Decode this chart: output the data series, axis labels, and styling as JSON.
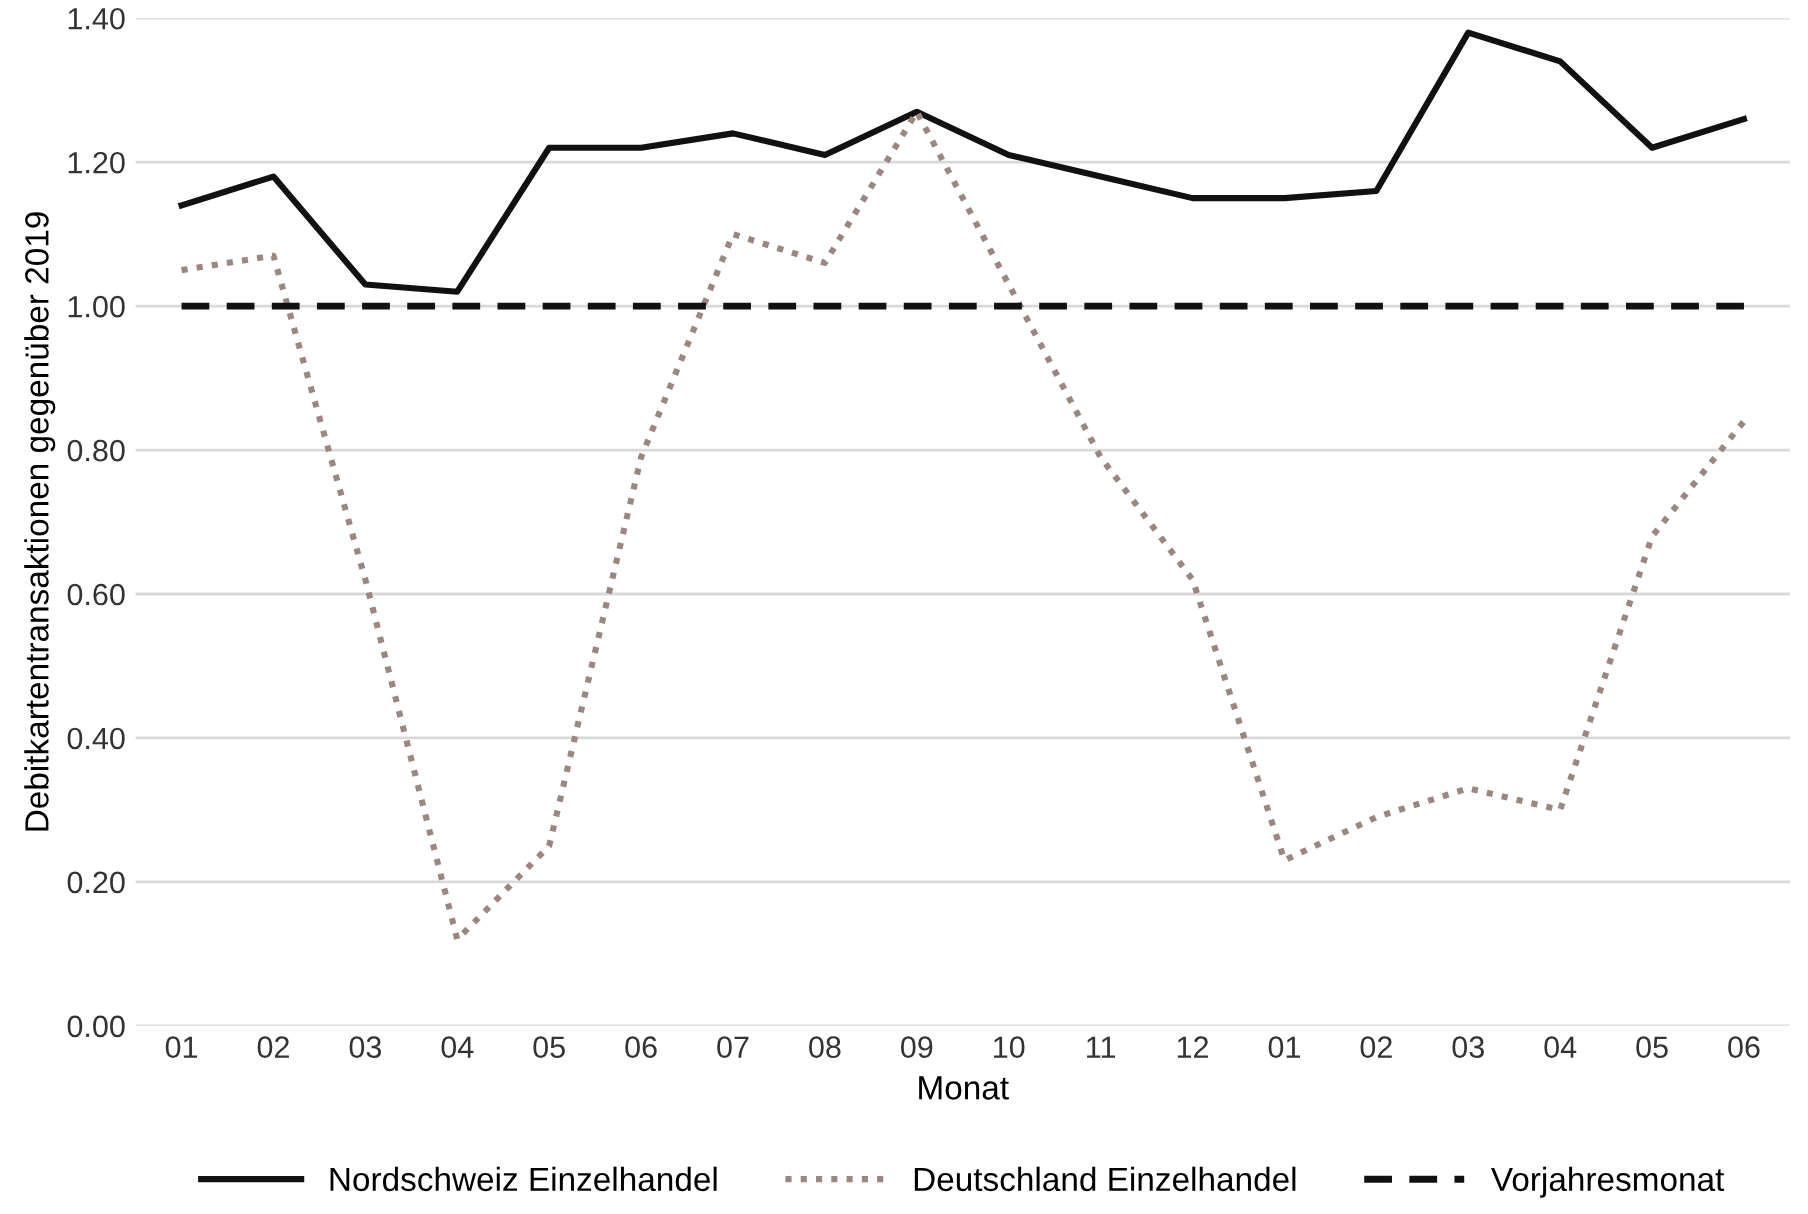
{
  "chart_data": {
    "type": "line",
    "xlabel": "Monat",
    "ylabel": "Debitkartentransaktionen gegenüber 2019",
    "categories": [
      "01",
      "02",
      "03",
      "04",
      "05",
      "06",
      "07",
      "08",
      "09",
      "10",
      "11",
      "12",
      "01",
      "02",
      "03",
      "04",
      "05",
      "06"
    ],
    "series": [
      {
        "name": "Nordschweiz Einzelhandel",
        "color": "#111111",
        "line_style": "solid",
        "values": [
          1.14,
          1.18,
          1.03,
          1.02,
          1.22,
          1.22,
          1.24,
          1.21,
          1.27,
          1.21,
          1.18,
          1.15,
          1.15,
          1.16,
          1.38,
          1.34,
          1.22,
          1.26
        ]
      },
      {
        "name": "Deutschland Einzelhandel",
        "color": "#9c8680",
        "line_style": "dotted",
        "values": [
          1.05,
          1.07,
          0.62,
          0.12,
          0.25,
          0.79,
          1.1,
          1.06,
          1.27,
          1.03,
          0.79,
          0.62,
          0.23,
          0.29,
          0.33,
          0.3,
          0.68,
          0.84
        ]
      },
      {
        "name": "Vorjahresmonat",
        "color": "#111111",
        "line_style": "dashed",
        "values": [
          1.0,
          1.0,
          1.0,
          1.0,
          1.0,
          1.0,
          1.0,
          1.0,
          1.0,
          1.0,
          1.0,
          1.0,
          1.0,
          1.0,
          1.0,
          1.0,
          1.0,
          1.0
        ]
      }
    ],
    "ylim": [
      0,
      1.4
    ],
    "yticks": [
      {
        "value": 0,
        "label": "0.00"
      },
      {
        "value": 0.2,
        "label": "0.20"
      },
      {
        "value": 0.4,
        "label": "0.40"
      },
      {
        "value": 0.6,
        "label": "0.60"
      },
      {
        "value": 0.8,
        "label": "0.80"
      },
      {
        "value": 1.0,
        "label": "1.00"
      },
      {
        "value": 1.2,
        "label": "1.20"
      },
      {
        "value": 1.4,
        "label": "1.40"
      }
    ],
    "grid": "y",
    "legend": "bottom"
  }
}
